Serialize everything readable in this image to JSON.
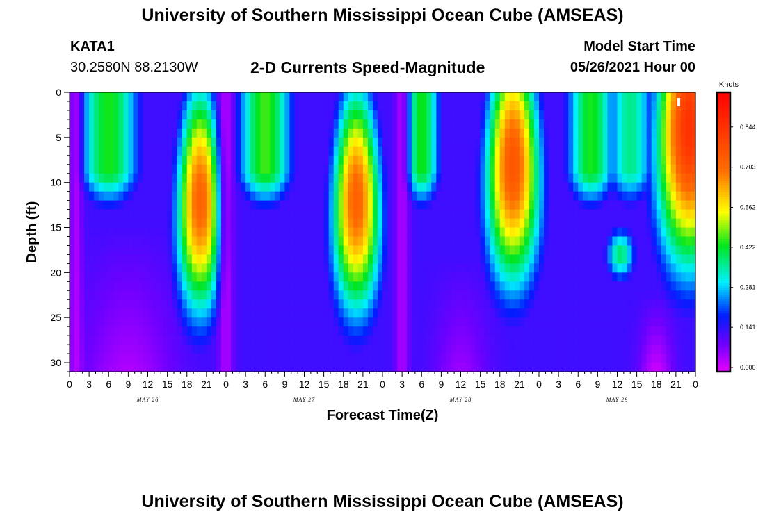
{
  "header": {
    "title": "University of Southern Mississippi Ocean Cube (AMSEAS)",
    "footer_title": "University of Southern Mississippi Ocean Cube (AMSEAS)",
    "station": "KATA1",
    "coordinates": "30.2580N  88.2130W",
    "product": "2-D Currents Speed-Magnitude",
    "model_start_label": "Model Start Time",
    "model_start_value": "05/26/2021 Hour 00"
  },
  "chart_data": {
    "type": "heatmap",
    "title": "2-D Currents Speed-Magnitude",
    "xlabel": "Forecast Time(Z)",
    "ylabel": "Depth (ft)",
    "x_unit": "hours from model start",
    "xlim": [
      0,
      96
    ],
    "ylim": [
      0,
      31
    ],
    "y_ticks": [
      0,
      5,
      10,
      15,
      20,
      25,
      30
    ],
    "x_ticks": [
      0,
      3,
      6,
      9,
      12,
      15,
      18,
      21,
      24,
      27,
      30,
      33,
      36,
      39,
      42,
      45,
      48,
      51,
      54,
      57,
      60,
      63,
      66,
      69,
      72,
      75,
      78,
      81,
      84,
      87,
      90,
      93,
      96
    ],
    "x_tick_labels": [
      "0",
      "3",
      "6",
      "9",
      "12",
      "15",
      "18",
      "21",
      "0",
      "3",
      "6",
      "9",
      "12",
      "15",
      "18",
      "21",
      "0",
      "3",
      "6",
      "9",
      "12",
      "15",
      "18",
      "21",
      "0",
      "3",
      "6",
      "9",
      "12",
      "15",
      "18",
      "21",
      "0"
    ],
    "day_labels": [
      {
        "text": "MAY 26",
        "hour": 12
      },
      {
        "text": "MAY 27",
        "hour": 36
      },
      {
        "text": "MAY 28",
        "hour": 60
      },
      {
        "text": "MAY 29",
        "hour": 84
      }
    ],
    "colorbar": {
      "unit": "Knots",
      "ticks": [
        0.0,
        0.141,
        0.281,
        0.422,
        0.562,
        0.703,
        0.844
      ],
      "tick_labels": [
        "0.000",
        "0.141",
        "0.281",
        "0.422",
        "0.562",
        "0.703",
        "0.844"
      ],
      "range": [
        0,
        0.98
      ]
    },
    "features": [
      {
        "hour": 20,
        "depth": 13,
        "speed": 0.74,
        "kind": "max"
      },
      {
        "hour": 44,
        "depth": 12,
        "speed": 0.74,
        "kind": "max"
      },
      {
        "hour": 68,
        "depth": 8,
        "speed": 0.76,
        "kind": "max"
      },
      {
        "hour": 94,
        "depth": 5,
        "speed": 0.84,
        "kind": "max"
      },
      {
        "hour": 9,
        "depth": 23,
        "speed": 0.05,
        "kind": "min"
      },
      {
        "hour": 90,
        "depth": 28,
        "speed": 0.02,
        "kind": "min"
      },
      {
        "hour": 51,
        "depth": 13,
        "speed": 0.12,
        "kind": "min"
      }
    ]
  }
}
